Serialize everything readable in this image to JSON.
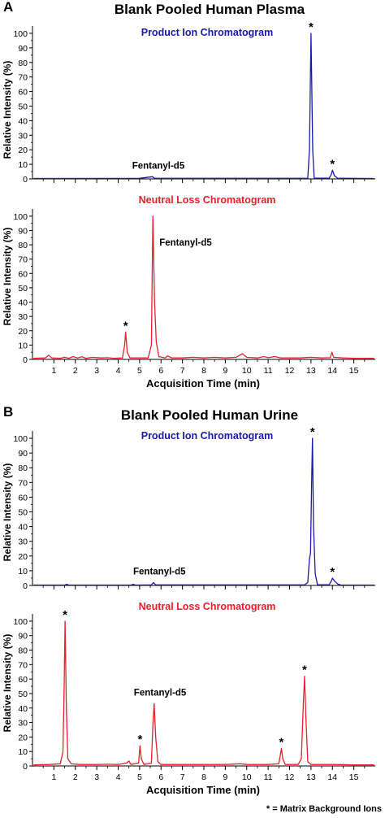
{
  "footnote": "* = Matrix Background Ions",
  "chart_data": [
    {
      "type": "line",
      "panel_letter": "A",
      "title": "Blank Pooled Human Plasma",
      "ylabel": "Relative Intensity (%)",
      "xlabel": "",
      "xlim": [
        0,
        16
      ],
      "x_ticks": [
        1,
        2,
        3,
        4,
        5,
        6,
        7,
        8,
        9,
        10,
        11,
        12,
        13,
        14,
        15
      ],
      "show_x_tick_labels": false,
      "ylim": [
        0,
        105
      ],
      "y_ticks": [
        0,
        10,
        20,
        30,
        40,
        50,
        60,
        70,
        80,
        90,
        100
      ],
      "grid": false,
      "legend": "none",
      "series": [
        {
          "name": "Product Ion Chromatogram",
          "color": "#1a1aaa",
          "points": [
            [
              0.05,
              0.3
            ],
            [
              5.0,
              0.4
            ],
            [
              5.6,
              1.5
            ],
            [
              5.7,
              0.4
            ],
            [
              12.85,
              0.4
            ],
            [
              12.93,
              20
            ],
            [
              13.0,
              100
            ],
            [
              13.08,
              20
            ],
            [
              13.15,
              0.5
            ],
            [
              13.85,
              0.5
            ],
            [
              13.95,
              3
            ],
            [
              14.0,
              6
            ],
            [
              14.1,
              2
            ],
            [
              14.25,
              0.5
            ],
            [
              15.95,
              0.3
            ]
          ],
          "annotations": [
            {
              "x": 5.6,
              "y": 1.5,
              "text": "Fentanyl-d5"
            },
            {
              "x": 13.0,
              "y": 100,
              "text": "*"
            },
            {
              "x": 14.0,
              "y": 6,
              "text": "*"
            }
          ]
        }
      ]
    },
    {
      "type": "line",
      "panel_letter": "",
      "title": "",
      "ylabel": "Relative Intensity (%)",
      "xlabel": "Acquisition Time (min)",
      "xlim": [
        0,
        16
      ],
      "x_ticks": [
        1,
        2,
        3,
        4,
        5,
        6,
        7,
        8,
        9,
        10,
        11,
        12,
        13,
        14,
        15
      ],
      "show_x_tick_labels": true,
      "ylim": [
        0,
        105
      ],
      "y_ticks": [
        0,
        10,
        20,
        30,
        40,
        50,
        60,
        70,
        80,
        90,
        100
      ],
      "grid": false,
      "legend": "none",
      "series": [
        {
          "name": "Neutral Loss Chromatogram",
          "color": "#e8202a",
          "points": [
            [
              0.05,
              0.8
            ],
            [
              0.6,
              1
            ],
            [
              0.75,
              3
            ],
            [
              0.9,
              1
            ],
            [
              1.3,
              0.8
            ],
            [
              1.5,
              1.5
            ],
            [
              1.7,
              0.8
            ],
            [
              1.9,
              2
            ],
            [
              2.1,
              1
            ],
            [
              2.3,
              1.8
            ],
            [
              2.5,
              0.8
            ],
            [
              2.8,
              1.5
            ],
            [
              3.2,
              1
            ],
            [
              3.5,
              1.2
            ],
            [
              3.8,
              0.8
            ],
            [
              4.2,
              1
            ],
            [
              4.3,
              10
            ],
            [
              4.35,
              19
            ],
            [
              4.42,
              5
            ],
            [
              4.55,
              1
            ],
            [
              5.4,
              1
            ],
            [
              5.55,
              10
            ],
            [
              5.62,
              100
            ],
            [
              5.7,
              40
            ],
            [
              5.78,
              12
            ],
            [
              5.9,
              2
            ],
            [
              6.2,
              1
            ],
            [
              6.3,
              2.5
            ],
            [
              6.5,
              1
            ],
            [
              7.0,
              1
            ],
            [
              7.5,
              1.5
            ],
            [
              8.0,
              1
            ],
            [
              8.5,
              1.5
            ],
            [
              9.0,
              1
            ],
            [
              9.5,
              1.5
            ],
            [
              9.8,
              4
            ],
            [
              10.0,
              1.5
            ],
            [
              10.5,
              1
            ],
            [
              10.8,
              2
            ],
            [
              11.0,
              1.2
            ],
            [
              11.3,
              2
            ],
            [
              11.6,
              1
            ],
            [
              12.0,
              1
            ],
            [
              12.5,
              1
            ],
            [
              13.0,
              1.5
            ],
            [
              13.5,
              1
            ],
            [
              13.9,
              1.2
            ],
            [
              13.98,
              5
            ],
            [
              14.06,
              1.5
            ],
            [
              14.5,
              1
            ],
            [
              15.0,
              0.8
            ],
            [
              15.95,
              0.8
            ]
          ],
          "annotations": [
            {
              "x": 5.62,
              "y": 100,
              "text": "Fentanyl-d5"
            },
            {
              "x": 4.35,
              "y": 19,
              "text": "*"
            }
          ]
        }
      ]
    },
    {
      "type": "line",
      "panel_letter": "B",
      "title": "Blank Pooled Human Urine",
      "ylabel": "Relative Intensity (%)",
      "xlabel": "",
      "xlim": [
        0,
        16
      ],
      "x_ticks": [
        1,
        2,
        3,
        4,
        5,
        6,
        7,
        8,
        9,
        10,
        11,
        12,
        13,
        14,
        15
      ],
      "show_x_tick_labels": false,
      "ylim": [
        0,
        105
      ],
      "y_ticks": [
        0,
        10,
        20,
        30,
        40,
        50,
        60,
        70,
        80,
        90,
        100
      ],
      "grid": false,
      "legend": "none",
      "series": [
        {
          "name": "Product Ion Chromatogram",
          "color": "#1a1aaa",
          "points": [
            [
              0.05,
              0.3
            ],
            [
              1.5,
              0.3
            ],
            [
              1.6,
              0.8
            ],
            [
              1.7,
              0.3
            ],
            [
              4.6,
              0.3
            ],
            [
              4.7,
              0.8
            ],
            [
              4.8,
              0.3
            ],
            [
              5.55,
              0.4
            ],
            [
              5.65,
              2
            ],
            [
              5.75,
              0.4
            ],
            [
              12.7,
              0.4
            ],
            [
              12.85,
              2
            ],
            [
              12.93,
              18
            ],
            [
              12.98,
              22
            ],
            [
              13.03,
              70
            ],
            [
              13.07,
              100
            ],
            [
              13.12,
              40
            ],
            [
              13.2,
              8
            ],
            [
              13.3,
              0.5
            ],
            [
              13.85,
              0.5
            ],
            [
              13.95,
              3
            ],
            [
              14.0,
              5
            ],
            [
              14.1,
              3
            ],
            [
              14.25,
              1
            ],
            [
              14.4,
              0.3
            ],
            [
              15.95,
              0.3
            ]
          ],
          "annotations": [
            {
              "x": 5.65,
              "y": 2,
              "text": "Fentanyl-d5"
            },
            {
              "x": 13.07,
              "y": 100,
              "text": "*"
            },
            {
              "x": 14.0,
              "y": 5,
              "text": "*"
            }
          ]
        }
      ]
    },
    {
      "type": "line",
      "panel_letter": "",
      "title": "",
      "ylabel": "Relative Intensity (%)",
      "xlabel": "Acquisition Time (min)",
      "xlim": [
        0,
        16
      ],
      "x_ticks": [
        1,
        2,
        3,
        4,
        5,
        6,
        7,
        8,
        9,
        10,
        11,
        12,
        13,
        14,
        15
      ],
      "show_x_tick_labels": true,
      "ylim": [
        0,
        105
      ],
      "y_ticks": [
        0,
        10,
        20,
        30,
        40,
        50,
        60,
        70,
        80,
        90,
        100
      ],
      "grid": false,
      "legend": "none",
      "series": [
        {
          "name": "Neutral Loss Chromatogram",
          "color": "#e8202a",
          "points": [
            [
              0.05,
              0.8
            ],
            [
              0.8,
              1
            ],
            [
              1.3,
              1.5
            ],
            [
              1.42,
              10
            ],
            [
              1.48,
              55
            ],
            [
              1.52,
              100
            ],
            [
              1.58,
              40
            ],
            [
              1.65,
              5
            ],
            [
              1.8,
              1.5
            ],
            [
              2.2,
              1
            ],
            [
              3.0,
              1
            ],
            [
              3.5,
              1.2
            ],
            [
              4.0,
              1
            ],
            [
              4.4,
              2
            ],
            [
              4.5,
              3.5
            ],
            [
              4.6,
              1
            ],
            [
              4.95,
              2
            ],
            [
              5.02,
              14
            ],
            [
              5.08,
              5
            ],
            [
              5.2,
              1
            ],
            [
              5.55,
              2
            ],
            [
              5.62,
              28
            ],
            [
              5.68,
              43
            ],
            [
              5.75,
              20
            ],
            [
              5.85,
              3
            ],
            [
              6.0,
              1
            ],
            [
              7.0,
              1
            ],
            [
              8.0,
              1
            ],
            [
              9.0,
              1
            ],
            [
              9.7,
              1.5
            ],
            [
              10.0,
              1
            ],
            [
              11.0,
              1
            ],
            [
              11.5,
              1.5
            ],
            [
              11.57,
              8
            ],
            [
              11.62,
              12
            ],
            [
              11.68,
              5
            ],
            [
              11.8,
              1
            ],
            [
              12.4,
              1
            ],
            [
              12.55,
              5
            ],
            [
              12.65,
              45
            ],
            [
              12.7,
              62
            ],
            [
              12.76,
              35
            ],
            [
              12.85,
              3
            ],
            [
              13.0,
              1
            ],
            [
              14.0,
              1
            ],
            [
              15.0,
              0.8
            ],
            [
              15.95,
              0.8
            ]
          ],
          "annotations": [
            {
              "x": 5.68,
              "y": 43,
              "text": "Fentanyl-d5"
            },
            {
              "x": 1.52,
              "y": 100,
              "text": "*"
            },
            {
              "x": 5.02,
              "y": 14,
              "text": "*"
            },
            {
              "x": 11.62,
              "y": 12,
              "text": "*"
            },
            {
              "x": 12.7,
              "y": 62,
              "text": "*"
            }
          ]
        }
      ]
    }
  ]
}
